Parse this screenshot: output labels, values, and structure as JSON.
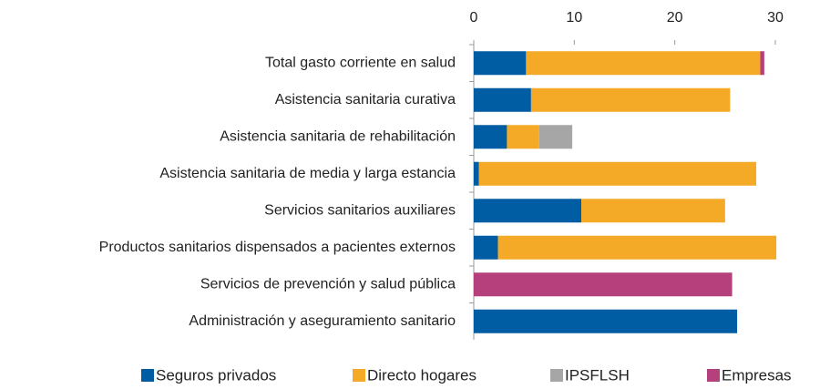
{
  "chart_data": {
    "type": "stacked_barh",
    "categories": [
      "Total gasto corriente en salud",
      "Asistencia sanitaria curativa",
      "Asistencia sanitaria de rehabilitación",
      "Asistencia sanitaria de media y larga estancia",
      "Servicios sanitarios auxiliares",
      "Productos sanitarios dispensados a pacientes externos",
      "Servicios de prevención y salud pública",
      "Administración y aseguramiento sanitario"
    ],
    "series": [
      {
        "name": "Seguros privados",
        "color": "#005da3",
        "values": [
          5.2,
          5.7,
          3.3,
          0.5,
          10.7,
          2.4,
          0,
          26.2
        ]
      },
      {
        "name": "Directo hogares",
        "color": "#f4aa26",
        "values": [
          23.3,
          19.8,
          3.2,
          27.6,
          14.3,
          27.7,
          0,
          0
        ]
      },
      {
        "name": "IPSFLSH",
        "color": "#a6a6a6",
        "values": [
          0,
          0,
          3.3,
          0,
          0,
          0,
          0,
          0
        ]
      },
      {
        "name": "Empresas",
        "color": "#b5407b",
        "values": [
          0.4,
          0,
          0,
          0,
          0,
          0,
          25.7,
          0
        ]
      }
    ],
    "xlim": [
      0,
      30
    ],
    "xticks": [
      0,
      10,
      20,
      30
    ],
    "legend": "bottom"
  }
}
